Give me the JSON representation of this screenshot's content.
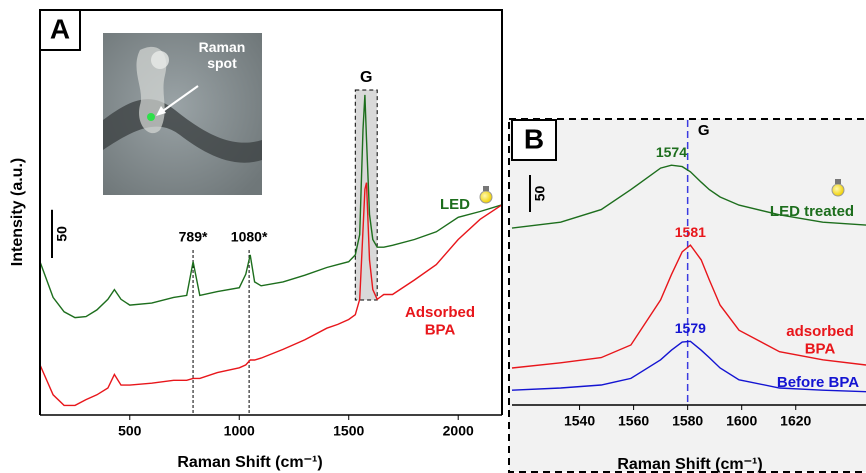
{
  "chart_data": [
    {
      "type": "line",
      "panel": "A",
      "y_label": "Intensity (a.u.)",
      "x_label": "Raman Shift (cm⁻¹)",
      "xlim": [
        90,
        2200
      ],
      "ylim": [
        0,
        420
      ],
      "xticks": [
        500,
        1000,
        1500,
        2000
      ],
      "scale_bar": 50,
      "inset_label": "Raman spot",
      "x": [
        90,
        150,
        200,
        250,
        300,
        350,
        400,
        430,
        460,
        500,
        600,
        700,
        760,
        789,
        820,
        900,
        1000,
        1030,
        1050,
        1070,
        1100,
        1200,
        1300,
        1400,
        1450,
        1500,
        1530,
        1550,
        1565,
        1574,
        1581,
        1595,
        1610,
        1630,
        1660,
        1700,
        1800,
        1900,
        2000,
        2100,
        2200
      ],
      "series": [
        {
          "name": "LED",
          "color": "#1d6e1d",
          "values": [
            159,
            122,
            107,
            101,
            102,
            109,
            120,
            130,
            120,
            114,
            116,
            122,
            124,
            159,
            124,
            128,
            132,
            146,
            166,
            138,
            134,
            138,
            145,
            153,
            156,
            159,
            166,
            187,
            296,
            332,
            286,
            208,
            182,
            174,
            174,
            176,
            182,
            190,
            205,
            211,
            218
          ]
        },
        {
          "name": "Adsorbed BPA",
          "color": "#e8161b",
          "values": [
            52,
            21,
            10,
            10,
            16,
            21,
            28,
            42,
            31,
            31,
            33,
            36,
            36,
            38,
            38,
            44,
            49,
            52,
            57,
            57,
            59,
            68,
            78,
            90,
            94,
            99,
            104,
            120,
            192,
            234,
            241,
            161,
            130,
            120,
            125,
            125,
            140,
            156,
            182,
            203,
            218
          ]
        }
      ],
      "annotations": [
        {
          "text": "789*",
          "x": 789
        },
        {
          "text": "1080*",
          "x": 1045
        }
      ],
      "highlight": {
        "text": "G",
        "range": [
          1530,
          1630
        ]
      }
    },
    {
      "type": "line",
      "panel": "B",
      "x_label": "Raman Shift (cm⁻¹)",
      "xlim": [
        1515,
        1646
      ],
      "ylim": [
        0,
        385
      ],
      "xticks": [
        1540,
        1560,
        1580,
        1600,
        1620
      ],
      "scale_bar": 50,
      "x": [
        1515,
        1533,
        1548,
        1559,
        1570,
        1574,
        1578,
        1581,
        1585,
        1588,
        1592,
        1599,
        1614,
        1630,
        1646
      ],
      "series": [
        {
          "name": "LED treated",
          "color": "#1d6e1d",
          "peak_label": "1574",
          "values": [
            239,
            247,
            264,
            291,
            320,
            324,
            322,
            315,
            301,
            291,
            281,
            270,
            257,
            247,
            243
          ]
        },
        {
          "name": "adsorbed BPA",
          "color": "#e8161b",
          "peak_label": "1581",
          "values": [
            50,
            57,
            64,
            81,
            142,
            176,
            207,
            216,
            196,
            169,
            135,
            101,
            72,
            61,
            54
          ]
        },
        {
          "name": "Before BPA",
          "color": "#1414d2",
          "peak_label": "1579",
          "values": [
            20,
            23,
            27,
            36,
            61,
            74,
            85,
            86,
            74,
            64,
            50,
            34,
            23,
            20,
            18
          ]
        }
      ],
      "guide": {
        "text": "G",
        "x": 1580
      }
    }
  ]
}
